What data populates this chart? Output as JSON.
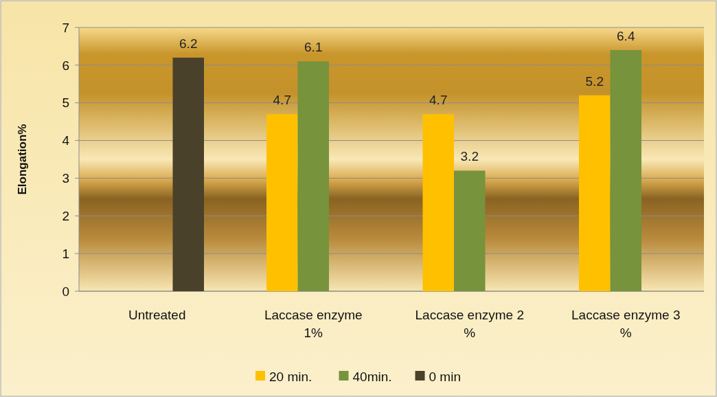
{
  "chart_data": {
    "type": "bar",
    "ylabel": "Elongation%",
    "categories": [
      "Untreated",
      "Laccase enzyme 1%",
      "Laccase enzyme 2 %",
      "Laccase enzyme 3 %"
    ],
    "series": [
      {
        "name": "20 min.",
        "color": "#ffc000",
        "values": [
          null,
          4.7,
          4.7,
          5.2
        ]
      },
      {
        "name": "40min.",
        "color": "#77933c",
        "values": [
          null,
          6.1,
          3.2,
          6.4
        ]
      },
      {
        "name": "0 min",
        "color": "#4a412a",
        "values": [
          6.2,
          null,
          null,
          null
        ]
      }
    ],
    "ylim": [
      0,
      7
    ],
    "yticks": [
      0,
      1,
      2,
      3,
      4,
      5,
      6,
      7
    ],
    "grid": "y",
    "legend": "bottom",
    "data_labels": true
  }
}
